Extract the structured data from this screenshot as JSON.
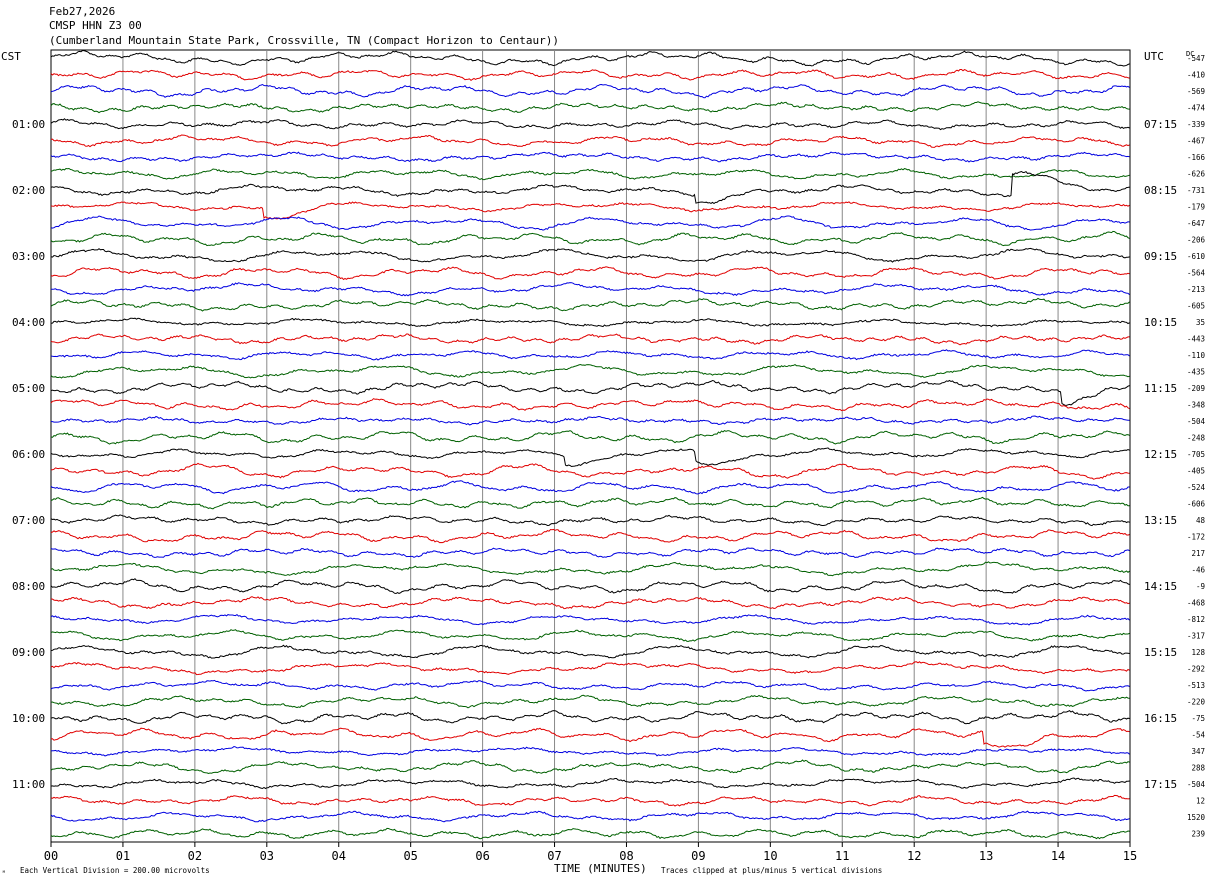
{
  "header": {
    "date": "Feb27,2026",
    "station": "CMSP HHN Z3 00",
    "location": "(Cumberland Mountain State Park, Crossville, TN (Compact Horizon to Centaur))"
  },
  "left_timezone": "CST",
  "right_timezone": "UTC",
  "dc_label": "DC",
  "footer": {
    "scale_note": "Each Vertical Division =  200.00 microvolts",
    "clip_note": "Traces clipped at plus/minus 5 vertical divisions",
    "logo": "ᴹ"
  },
  "chart_data": {
    "type": "line",
    "title": "",
    "xlabel": "TIME (MINUTES)",
    "x_ticks": [
      "00",
      "01",
      "02",
      "03",
      "04",
      "05",
      "06",
      "07",
      "08",
      "09",
      "10",
      "11",
      "12",
      "13",
      "14",
      "15"
    ],
    "xlim": [
      0,
      15
    ],
    "grid": true,
    "trace_colors": [
      "#000000",
      "#e00000",
      "#0000e0",
      "#006000"
    ],
    "left_hour_labels": [
      "01:00",
      "02:00",
      "03:00",
      "04:00",
      "05:00",
      "06:00",
      "07:00",
      "08:00",
      "09:00",
      "10:00",
      "11:00"
    ],
    "right_hour_labels": [
      "07:15",
      "08:15",
      "09:15",
      "10:15",
      "11:15",
      "12:15",
      "13:15",
      "14:15",
      "15:15",
      "16:15",
      "17:15"
    ],
    "dc_offsets": [
      "-547",
      "-410",
      "-569",
      "-474",
      "-339",
      "-467",
      "-166",
      "-626",
      "-731",
      "-179",
      "-647",
      "-206",
      "-610",
      "-564",
      "-213",
      "-605",
      "35",
      "-443",
      "-110",
      "-435",
      "-209",
      "-348",
      "-504",
      "-248",
      "-705",
      "-405",
      "-524",
      "-606",
      "48",
      "-172",
      "217",
      "-46",
      "-9",
      "-468",
      "-812",
      "-317",
      "128",
      "-292",
      "-513",
      "-220",
      "-75",
      "-54",
      "347",
      "288",
      "-504",
      "12",
      "1520",
      "239"
    ],
    "series_count": 48,
    "events": [
      {
        "trace": 8,
        "minute": 13.4,
        "amplitude_div": 1.3
      },
      {
        "trace": 8,
        "minute": 9.0,
        "amplitude_div": -0.5
      },
      {
        "trace": 9,
        "minute": 3.0,
        "amplitude_div": -0.6
      },
      {
        "trace": 20,
        "minute": 14.1,
        "amplitude_div": -0.7
      },
      {
        "trace": 24,
        "minute": 9.0,
        "amplitude_div": -0.6
      },
      {
        "trace": 24,
        "minute": 7.2,
        "amplitude_div": -0.5
      },
      {
        "trace": 41,
        "minute": 13.0,
        "amplitude_div": -0.7
      }
    ]
  }
}
